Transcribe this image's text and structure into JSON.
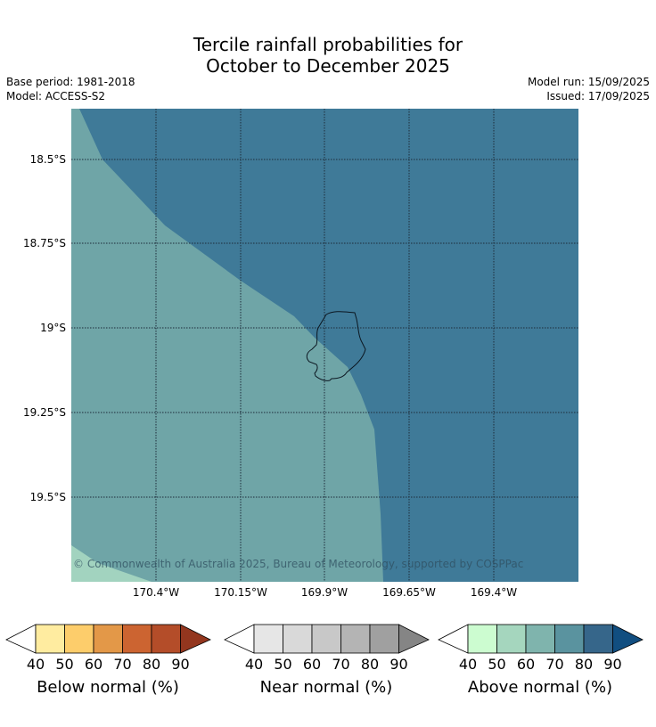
{
  "title_line1": "Tercile rainfall probabilities for",
  "title_line2": "October to December 2025",
  "base_period": "Base period: 1981-2018",
  "model": "Model: ACCESS-S2",
  "model_run": "Model run: 15/09/2025",
  "issued": "Issued: 17/09/2025",
  "copyright": "© Commonwealth of Australia 2025, Bureau of Meteorology, supported by COSPPac",
  "lat_labels": [
    "18.5°S",
    "18.75°S",
    "19°S",
    "19.25°S",
    "19.5°S"
  ],
  "lon_labels": [
    "170.4°W",
    "170.15°W",
    "169.9°W",
    "169.65°W",
    "169.4°W"
  ],
  "colorbars": [
    {
      "label": "Below normal (%)",
      "ticks": [
        "40",
        "50",
        "60",
        "70",
        "80",
        "90"
      ],
      "colors": [
        "#ffffff",
        "#ffeca0",
        "#fdcd6b",
        "#e39848",
        "#cc6431",
        "#b44d29",
        "#93361e"
      ]
    },
    {
      "label": "Near normal (%)",
      "ticks": [
        "40",
        "50",
        "60",
        "70",
        "80",
        "90"
      ],
      "colors": [
        "#ffffff",
        "#e6e6e6",
        "#d9d9d9",
        "#c8c8c8",
        "#b4b4b4",
        "#a0a0a0",
        "#858585"
      ]
    },
    {
      "label": "Above normal (%)",
      "ticks": [
        "40",
        "50",
        "60",
        "70",
        "80",
        "90"
      ],
      "colors": [
        "#ffffff",
        "#ccfcd0",
        "#a5d6be",
        "#7fb4ad",
        "#5a939f",
        "#36668a",
        "#114e80"
      ]
    }
  ],
  "map_colors": {
    "dark": "#3f7a98",
    "mid": "#6fa5a7",
    "light": "#a2d3bf"
  }
}
